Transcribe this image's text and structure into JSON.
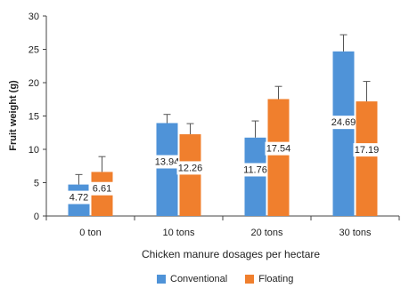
{
  "chart_data": {
    "type": "bar",
    "title": "",
    "xlabel": "Chicken manure dosages per hectare",
    "ylabel": "Fruit weight (g)",
    "ylim": [
      0,
      30
    ],
    "yticks": [
      0,
      5,
      10,
      15,
      20,
      25,
      30
    ],
    "categories": [
      "0  ton",
      "10 tons",
      "20 tons",
      "30 tons"
    ],
    "series": [
      {
        "name": "Conventional",
        "color": "#4f93d8",
        "values": [
          4.72,
          13.94,
          11.76,
          24.69
        ],
        "error": [
          1.5,
          1.3,
          2.5,
          2.5
        ],
        "labels": [
          "4.72",
          "13.94",
          "11.76",
          "24.69"
        ]
      },
      {
        "name": "Floating",
        "color": "#f07f2d",
        "values": [
          6.61,
          12.26,
          17.54,
          17.19
        ],
        "error": [
          2.3,
          1.6,
          1.9,
          3.0
        ],
        "labels": [
          "6.61",
          "12.26",
          "17.54",
          "17.19"
        ]
      }
    ],
    "grid": false,
    "legend_position": "bottom"
  }
}
